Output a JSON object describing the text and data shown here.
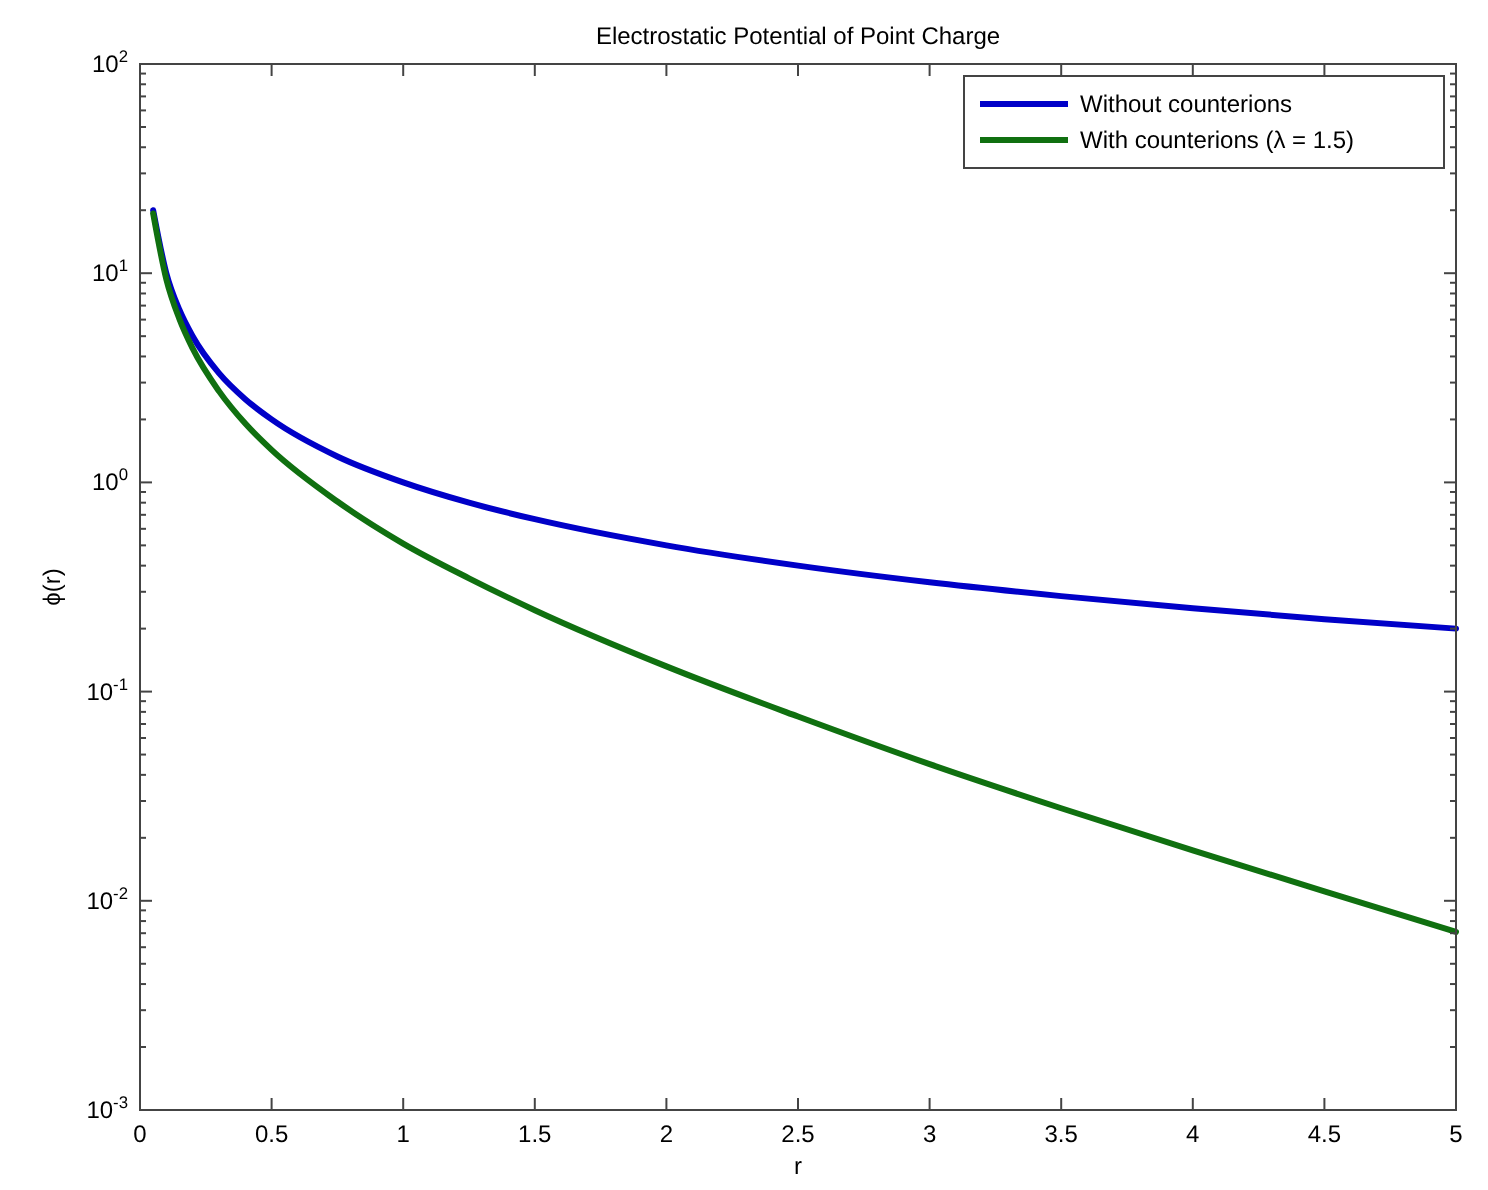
{
  "chart_data": {
    "type": "line",
    "title": "Electrostatic Potential of Point Charge",
    "xlabel": "r",
    "ylabel": "ϕ(r)",
    "x": [
      0.05,
      0.1,
      0.15,
      0.2,
      0.3,
      0.4,
      0.5,
      0.75,
      1,
      1.25,
      1.5,
      2,
      2.5,
      3,
      3.5,
      4,
      4.5,
      5
    ],
    "series": [
      {
        "name": "Without counterions",
        "color": "#0000c8",
        "values": [
          20,
          10,
          6.67,
          5,
          3.33,
          2.5,
          2,
          1.33,
          1,
          0.8,
          0.667,
          0.5,
          0.4,
          0.333,
          0.286,
          0.25,
          0.222,
          0.2
        ]
      },
      {
        "name": "With counterions (λ = 1.5)",
        "color": "#107010",
        "values": [
          19.3,
          9.36,
          6.03,
          4.37,
          2.73,
          1.91,
          1.43,
          0.81,
          0.51,
          0.348,
          0.245,
          0.132,
          0.076,
          0.045,
          0.0277,
          0.0174,
          0.0111,
          0.0071
        ]
      }
    ],
    "log": "y",
    "xlim": [
      0,
      5
    ],
    "xticks": [
      0,
      0.5,
      1,
      1.5,
      2,
      2.5,
      3,
      3.5,
      4,
      4.5,
      5
    ],
    "ylim": [
      0.001,
      100
    ],
    "yticks": [
      {
        "value": 0.001,
        "label": "10$^{-3}$"
      },
      {
        "value": 0.002,
        "label": null
      },
      {
        "value": 0.003,
        "label": null
      },
      {
        "value": 0.004,
        "label": null
      },
      {
        "value": 0.005,
        "label": null
      },
      {
        "value": 0.006,
        "label": null
      },
      {
        "value": 0.007,
        "label": null
      },
      {
        "value": 0.008,
        "label": null
      },
      {
        "value": 0.009,
        "label": null
      },
      {
        "value": 0.01,
        "label": "10$^{-2}$"
      },
      {
        "value": 0.02,
        "label": null
      },
      {
        "value": 0.03,
        "label": null
      },
      {
        "value": 0.04,
        "label": null
      },
      {
        "value": 0.05,
        "label": null
      },
      {
        "value": 0.06,
        "label": null
      },
      {
        "value": 0.07,
        "label": null
      },
      {
        "value": 0.08,
        "label": null
      },
      {
        "value": 0.09,
        "label": null
      },
      {
        "value": 0.1,
        "label": "10$^{-1}$"
      },
      {
        "value": 0.2,
        "label": null
      },
      {
        "value": 0.3,
        "label": null
      },
      {
        "value": 0.4,
        "label": null
      },
      {
        "value": 0.5,
        "label": null
      },
      {
        "value": 0.6,
        "label": null
      },
      {
        "value": 0.7,
        "label": null
      },
      {
        "value": 0.8,
        "label": null
      },
      {
        "value": 0.9,
        "label": null
      },
      {
        "value": 1,
        "label": "10$^{0}$"
      },
      {
        "value": 2,
        "label": null
      },
      {
        "value": 3,
        "label": null
      },
      {
        "value": 4,
        "label": null
      },
      {
        "value": 5,
        "label": null
      },
      {
        "value": 6,
        "label": null
      },
      {
        "value": 7,
        "label": null
      },
      {
        "value": 8,
        "label": null
      },
      {
        "value": 9,
        "label": null
      },
      {
        "value": 10,
        "label": "10$^{1}$"
      },
      {
        "value": 20,
        "label": null
      },
      {
        "value": 30,
        "label": null
      },
      {
        "value": 40,
        "label": null
      },
      {
        "value": 50,
        "label": null
      },
      {
        "value": 60,
        "label": null
      },
      {
        "value": 70,
        "label": null
      },
      {
        "value": 80,
        "label": null
      },
      {
        "value": 90,
        "label": null
      },
      {
        "value": 100,
        "label": "10$^{2}$"
      }
    ],
    "grid": false,
    "legend": "top right",
    "marker": "none",
    "line_style": "solid"
  }
}
